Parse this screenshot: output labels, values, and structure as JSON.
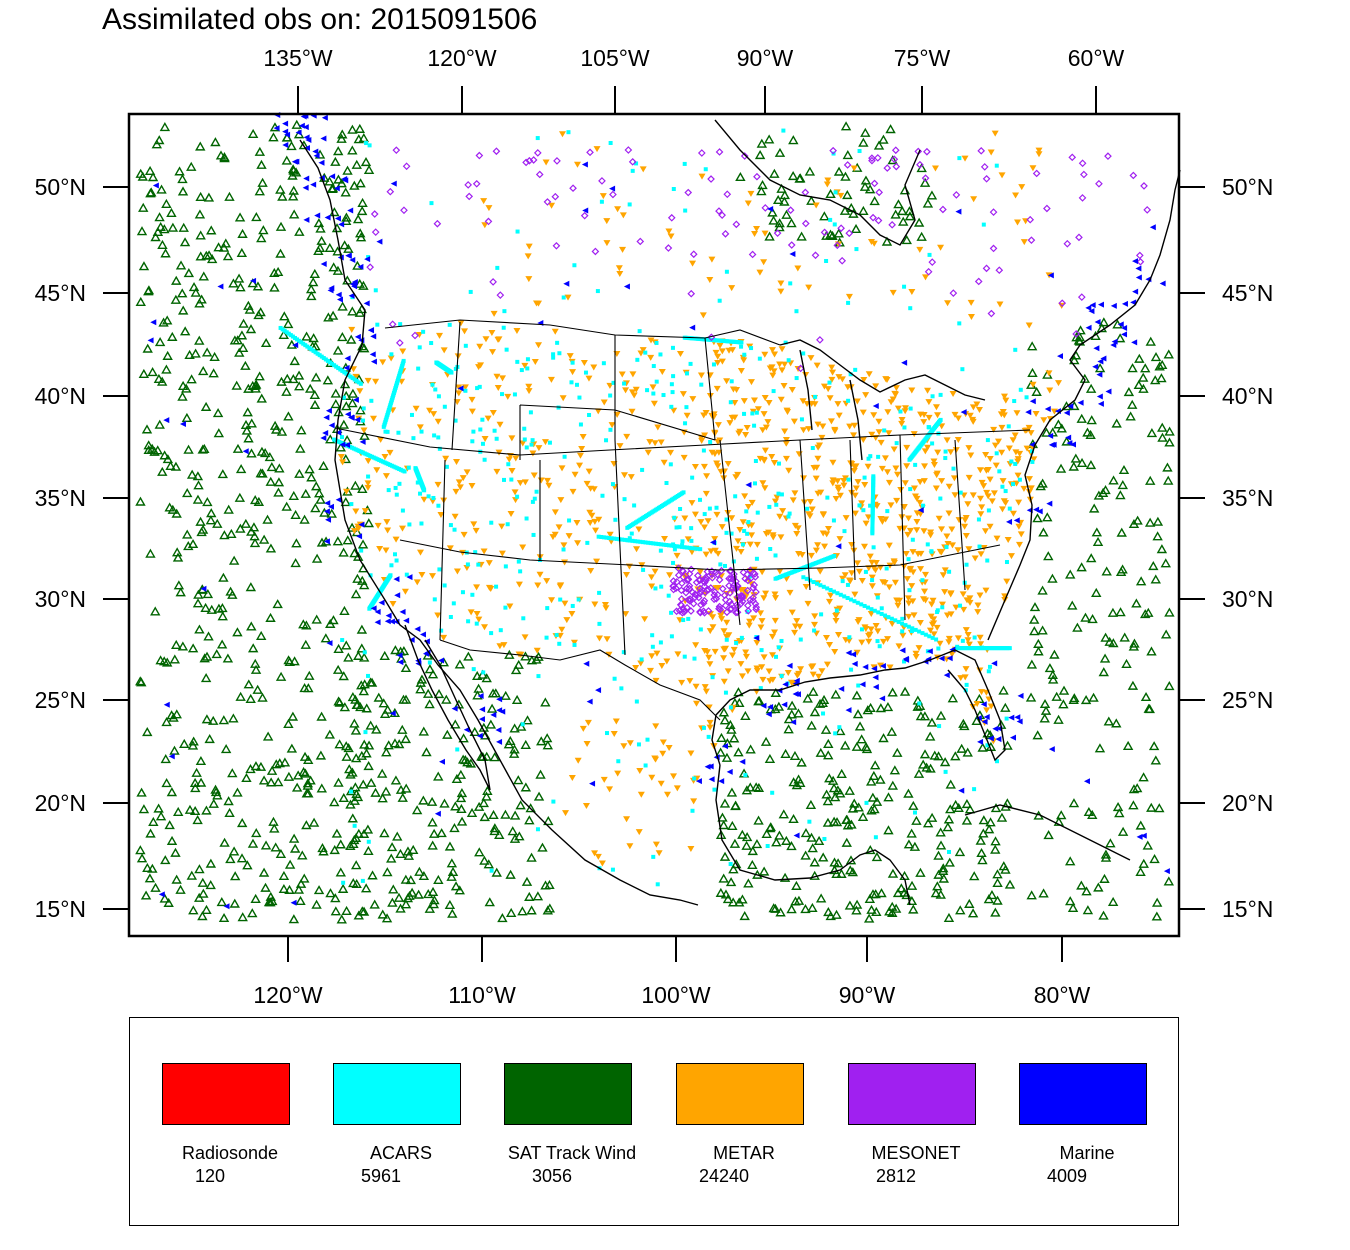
{
  "title": "Assimilated obs on: 2015091506",
  "axes": {
    "top_lon_labels": [
      "135°W",
      "120°W",
      "105°W",
      "90°W",
      "75°W",
      "60°W"
    ],
    "bottom_lon_labels": [
      "120°W",
      "110°W",
      "100°W",
      "90°W",
      "80°W"
    ],
    "lat_labels": [
      "50°N",
      "45°N",
      "40°N",
      "35°N",
      "30°N",
      "25°N",
      "20°N",
      "15°N"
    ]
  },
  "legend": [
    {
      "label": "Radiosonde",
      "count": "120",
      "color": "#ff0000"
    },
    {
      "label": "ACARS",
      "count": "5961",
      "color": "#00ffff"
    },
    {
      "label": "SAT Track Wind",
      "count": "3056",
      "color": "#006400"
    },
    {
      "label": "METAR",
      "count": "24240",
      "color": "#ffa500"
    },
    {
      "label": "MESONET",
      "count": "2812",
      "color": "#a020f0"
    },
    {
      "label": "Marine",
      "count": "4009",
      "color": "#0000ff"
    }
  ],
  "markers": {
    "sat_track_wind": "open-triangle",
    "metar": "down-triangle",
    "acars": "square",
    "mesonet": "diamond",
    "marine": "left-triangle"
  }
}
